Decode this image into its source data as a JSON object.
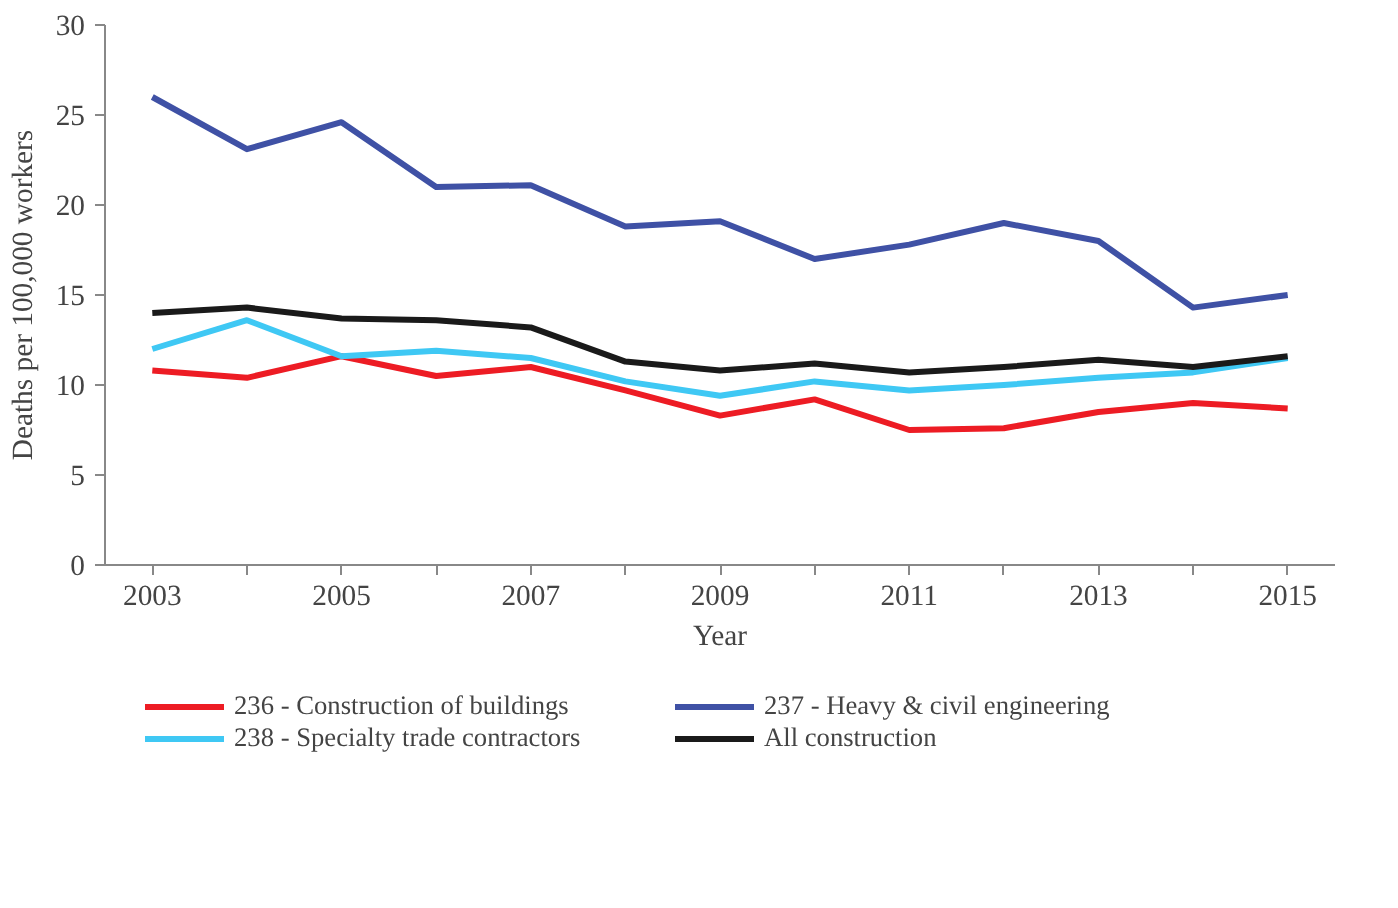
{
  "chart_data": {
    "type": "line",
    "xlabel": "Year",
    "ylabel": "Deaths per 100,000 workers",
    "x": [
      2003,
      2004,
      2005,
      2006,
      2007,
      2008,
      2009,
      2010,
      2011,
      2012,
      2013,
      2014,
      2015
    ],
    "xlim": [
      2002.5,
      2015.5
    ],
    "xticks": [
      2003,
      {
        "value": 2004,
        "label": null
      },
      2005,
      {
        "value": 2006,
        "label": null
      },
      2007,
      {
        "value": 2008,
        "label": null
      },
      2009,
      {
        "value": 2010,
        "label": null
      },
      2011,
      {
        "value": 2012,
        "label": null
      },
      2013,
      {
        "value": 2014,
        "label": null
      },
      2015
    ],
    "ylim": [
      0,
      30
    ],
    "yticks": [
      0,
      5,
      10,
      15,
      20,
      25,
      30
    ],
    "series": [
      {
        "name": "236 - Construction of buildings",
        "color": "#ed1c24",
        "values": [
          10.8,
          10.4,
          11.6,
          10.5,
          11.0,
          9.7,
          8.3,
          9.2,
          7.5,
          7.6,
          8.5,
          9.0,
          8.7
        ]
      },
      {
        "name": "237 - Heavy & civil engineering",
        "color": "#3f51a5",
        "values": [
          26.0,
          23.1,
          24.6,
          21.0,
          21.1,
          18.8,
          19.1,
          17.0,
          17.8,
          19.0,
          18.0,
          14.3,
          15.0
        ]
      },
      {
        "name": "238 - Specialty trade contractors",
        "color": "#3fc8f4",
        "values": [
          12.0,
          13.6,
          11.6,
          11.9,
          11.5,
          10.2,
          9.4,
          10.2,
          9.7,
          10.0,
          10.4,
          10.7,
          11.5
        ]
      },
      {
        "name": "All construction",
        "color": "#1a1a1a",
        "values": [
          14.0,
          14.3,
          13.7,
          13.6,
          13.2,
          11.3,
          10.8,
          11.2,
          10.7,
          11.0,
          11.4,
          11.0,
          11.6
        ]
      }
    ],
    "grid": false,
    "legend": "bottom",
    "marker": "none",
    "line_style": "solid"
  }
}
